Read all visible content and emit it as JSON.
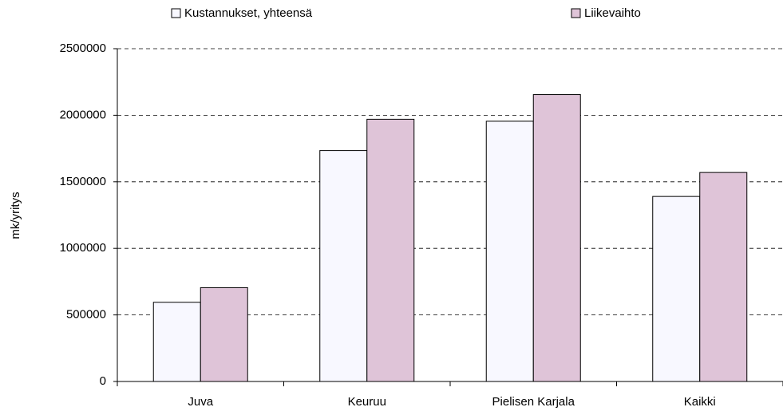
{
  "chart_data": {
    "type": "bar",
    "categories": [
      "Juva",
      "Keuruu",
      "Pielisen Karjala",
      "Kaikki"
    ],
    "series": [
      {
        "name": "Kustannukset, yhteensä",
        "color": "#f8f8ff",
        "values": [
          595000,
          1735000,
          1955000,
          1390000
        ]
      },
      {
        "name": "Liikevaihto",
        "color": "#dfc4d8",
        "values": [
          705000,
          1970000,
          2155000,
          1570000
        ]
      }
    ],
    "ylabel": "mk/yritys",
    "ylim": [
      0,
      2500000
    ],
    "yticks": [
      0,
      500000,
      1000000,
      1500000,
      2000000,
      2500000
    ],
    "grid": true,
    "legend": "top"
  }
}
